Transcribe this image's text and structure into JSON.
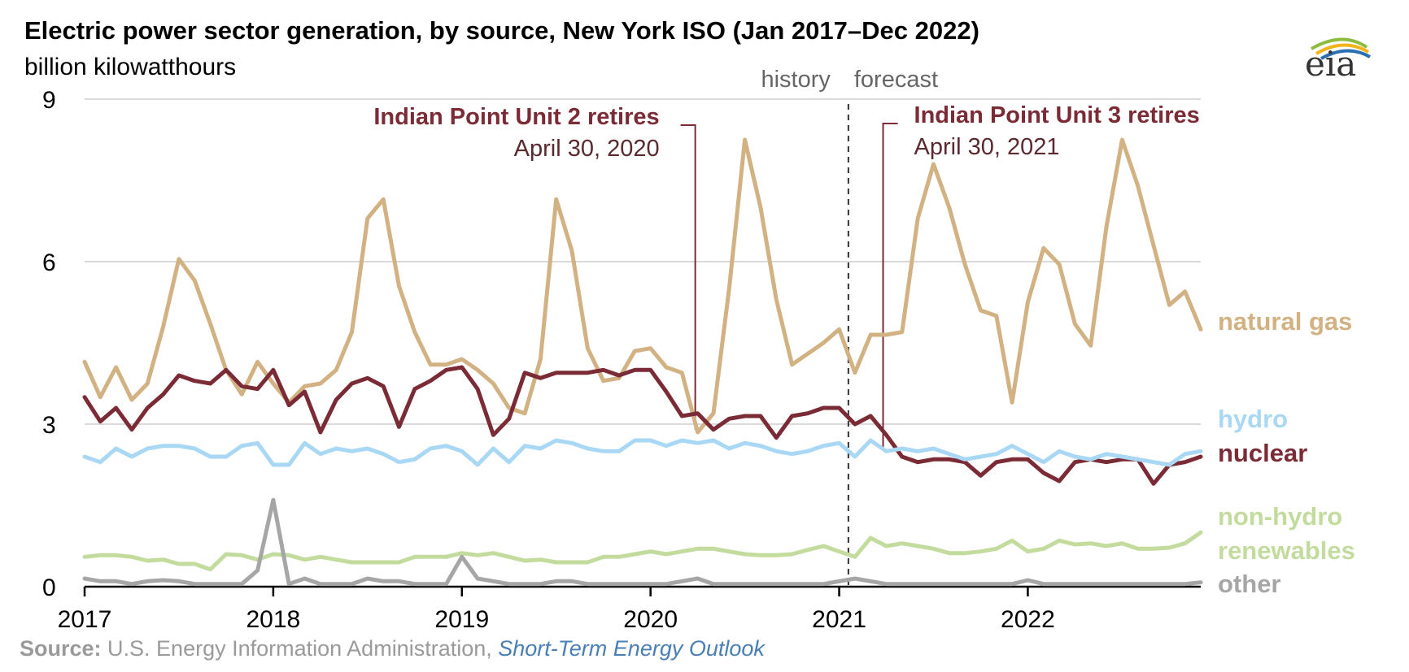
{
  "chart_data": {
    "type": "line",
    "title": "Electric power sector generation, by source, New York ISO (Jan 2017–Dec 2022)",
    "subtitle": "billion kilowatthours",
    "ylim": [
      0,
      9
    ],
    "yticks": [
      "0",
      "3",
      "6",
      "9"
    ],
    "xticks": [
      "2017",
      "2018",
      "2019",
      "2020",
      "2021",
      "2022"
    ],
    "x_start": "2017-01",
    "x_end": "2022-12",
    "grid": true,
    "forecast_start": "2021-02",
    "period_labels": {
      "history": "history",
      "forecast": "forecast"
    },
    "annotations": [
      {
        "x": "2020-04",
        "title": "Indian Point Unit 2 retires",
        "date": "April 30, 2020"
      },
      {
        "x": "2021-04",
        "title": "Indian Point Unit 3 retires",
        "date": "April 30, 2021"
      }
    ],
    "series": [
      {
        "name": "natural gas",
        "label_lines": [
          "natural gas"
        ],
        "color": "#d2b182",
        "values": [
          4.15,
          3.5,
          4.05,
          3.45,
          3.75,
          4.8,
          6.05,
          5.65,
          4.85,
          4.0,
          3.55,
          4.15,
          3.75,
          3.4,
          3.7,
          3.75,
          4.0,
          4.7,
          6.8,
          7.15,
          5.55,
          4.7,
          4.1,
          4.1,
          4.2,
          4.0,
          3.75,
          3.3,
          3.2,
          4.2,
          7.15,
          6.2,
          4.4,
          3.8,
          3.85,
          4.35,
          4.4,
          4.05,
          3.95,
          2.85,
          3.2,
          5.5,
          8.25,
          7.0,
          5.3,
          4.1,
          4.3,
          4.5,
          4.75,
          3.95,
          4.65,
          4.65,
          4.7,
          6.8,
          7.8,
          7.0,
          5.95,
          5.1,
          5.0,
          3.4,
          5.25,
          6.25,
          5.95,
          4.85,
          4.45,
          6.65,
          8.25,
          7.4,
          6.3,
          5.2,
          5.45,
          4.75
        ]
      },
      {
        "name": "hydro",
        "label_lines": [
          "hydro"
        ],
        "color": "#a9d8f5",
        "values": [
          2.4,
          2.3,
          2.55,
          2.4,
          2.55,
          2.6,
          2.6,
          2.55,
          2.4,
          2.4,
          2.6,
          2.65,
          2.25,
          2.25,
          2.65,
          2.45,
          2.55,
          2.5,
          2.55,
          2.45,
          2.3,
          2.35,
          2.55,
          2.6,
          2.5,
          2.25,
          2.55,
          2.3,
          2.6,
          2.55,
          2.7,
          2.65,
          2.55,
          2.5,
          2.5,
          2.7,
          2.7,
          2.6,
          2.7,
          2.65,
          2.7,
          2.55,
          2.65,
          2.6,
          2.5,
          2.45,
          2.5,
          2.6,
          2.65,
          2.4,
          2.7,
          2.5,
          2.55,
          2.5,
          2.55,
          2.45,
          2.35,
          2.4,
          2.45,
          2.6,
          2.45,
          2.3,
          2.5,
          2.4,
          2.35,
          2.45,
          2.4,
          2.35,
          2.3,
          2.25,
          2.45,
          2.5
        ]
      },
      {
        "name": "nuclear",
        "label_lines": [
          "nuclear"
        ],
        "color": "#7b2b36",
        "values": [
          3.5,
          3.05,
          3.3,
          2.9,
          3.3,
          3.55,
          3.9,
          3.8,
          3.75,
          4.0,
          3.7,
          3.65,
          4.0,
          3.35,
          3.6,
          2.85,
          3.45,
          3.75,
          3.85,
          3.7,
          2.95,
          3.65,
          3.8,
          4.0,
          4.05,
          3.65,
          2.8,
          3.1,
          3.95,
          3.85,
          3.95,
          3.95,
          3.95,
          4.0,
          3.9,
          4.0,
          4.0,
          3.6,
          3.15,
          3.2,
          2.9,
          3.1,
          3.15,
          3.15,
          2.75,
          3.15,
          3.2,
          3.3,
          3.3,
          3.0,
          3.15,
          2.8,
          2.4,
          2.3,
          2.35,
          2.35,
          2.3,
          2.05,
          2.3,
          2.35,
          2.35,
          2.1,
          1.95,
          2.3,
          2.35,
          2.3,
          2.35,
          2.35,
          1.9,
          2.25,
          2.3,
          2.4
        ]
      },
      {
        "name": "non-hydro renewables",
        "label_lines": [
          "non-hydro",
          "renewables"
        ],
        "color": "#c3dc9e",
        "values": [
          0.55,
          0.58,
          0.58,
          0.55,
          0.48,
          0.5,
          0.42,
          0.42,
          0.32,
          0.6,
          0.58,
          0.5,
          0.6,
          0.58,
          0.5,
          0.55,
          0.5,
          0.45,
          0.45,
          0.45,
          0.45,
          0.55,
          0.55,
          0.55,
          0.62,
          0.58,
          0.62,
          0.55,
          0.48,
          0.5,
          0.45,
          0.45,
          0.45,
          0.55,
          0.55,
          0.6,
          0.65,
          0.6,
          0.65,
          0.7,
          0.7,
          0.65,
          0.6,
          0.58,
          0.58,
          0.6,
          0.68,
          0.75,
          0.65,
          0.55,
          0.9,
          0.75,
          0.8,
          0.75,
          0.7,
          0.62,
          0.62,
          0.65,
          0.7,
          0.85,
          0.65,
          0.7,
          0.85,
          0.78,
          0.8,
          0.75,
          0.8,
          0.7,
          0.7,
          0.72,
          0.8,
          1.0
        ]
      },
      {
        "name": "other",
        "label_lines": [
          "other"
        ],
        "color": "#a6a6a6",
        "values": [
          0.15,
          0.1,
          0.1,
          0.05,
          0.1,
          0.12,
          0.1,
          0.05,
          0.05,
          0.05,
          0.05,
          0.3,
          1.6,
          0.05,
          0.15,
          0.05,
          0.05,
          0.05,
          0.15,
          0.1,
          0.1,
          0.05,
          0.05,
          0.05,
          0.55,
          0.15,
          0.1,
          0.05,
          0.05,
          0.05,
          0.1,
          0.1,
          0.05,
          0.05,
          0.05,
          0.05,
          0.05,
          0.05,
          0.1,
          0.15,
          0.05,
          0.05,
          0.05,
          0.05,
          0.05,
          0.05,
          0.05,
          0.05,
          0.1,
          0.15,
          0.1,
          0.05,
          0.05,
          0.05,
          0.05,
          0.05,
          0.05,
          0.05,
          0.05,
          0.05,
          0.12,
          0.05,
          0.05,
          0.05,
          0.05,
          0.05,
          0.05,
          0.05,
          0.05,
          0.05,
          0.05,
          0.08
        ]
      }
    ]
  },
  "source": {
    "label": "Source:",
    "text": " U.S. Energy Information Administration, ",
    "link": "Short-Term Energy Outlook"
  },
  "logo": {
    "text": "eia"
  }
}
